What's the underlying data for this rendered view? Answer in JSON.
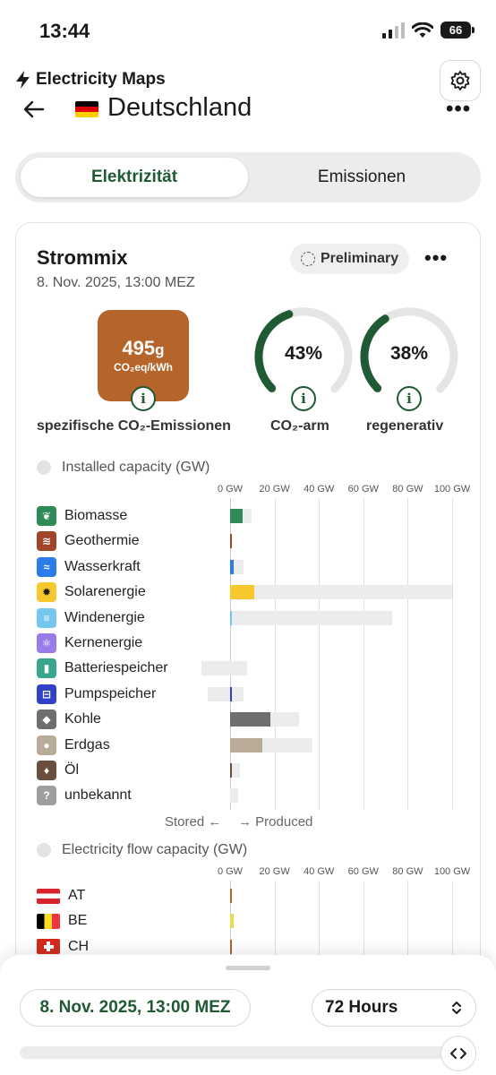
{
  "status": {
    "time": "13:44",
    "battery": "66"
  },
  "app": {
    "brand": "Electricity Maps"
  },
  "header": {
    "country": "Deutschland"
  },
  "tabs": [
    {
      "label": "Elektrizität",
      "active": true
    },
    {
      "label": "Emissionen",
      "active": false
    }
  ],
  "card": {
    "title": "Strommix",
    "date": "8. Nov. 2025, 13:00 MEZ",
    "badge": "Preliminary",
    "metrics": {
      "co2_value": "495",
      "co2_value_unit": "g",
      "co2_unit": "CO₂eq/kWh",
      "co2_label": "spezifische CO₂-Emissionen",
      "low_carbon_value": "43%",
      "low_carbon_fraction": 0.43,
      "low_carbon_label": "CO₂-arm",
      "renewable_value": "38%",
      "renewable_fraction": 0.38,
      "renewable_label": "regenerativ"
    },
    "installed": {
      "title": "Installed capacity (GW)",
      "axis_ticks": [
        "0 GW",
        "20 GW",
        "40 GW",
        "60 GW",
        "80 GW",
        "100 GW"
      ],
      "stored_label": "Stored ←",
      "produced_label": "→ Produced",
      "unknown_mark": "?",
      "sources": [
        {
          "label": "Biomasse",
          "icon": "leaf-icon",
          "color": "#2e8b57",
          "produced": 5.5,
          "capacity": 9.5,
          "stored": 0
        },
        {
          "label": "Geothermie",
          "icon": "geothermal-icon",
          "color": "#a0462a",
          "produced": 0.2,
          "capacity": 0.4,
          "stored": 0
        },
        {
          "label": "Wasserkraft",
          "icon": "water-icon",
          "color": "#2b7de9",
          "produced": 1.6,
          "capacity": 6.0,
          "stored": 0
        },
        {
          "label": "Solarenergie",
          "icon": "sun-icon",
          "color": "#f7c82e",
          "produced": 11.0,
          "capacity": 100.0,
          "stored": 0
        },
        {
          "label": "Windenergie",
          "icon": "wind-icon",
          "color": "#74c6ef",
          "produced": 0.6,
          "capacity": 73.0,
          "stored": 0
        },
        {
          "label": "Kernenergie",
          "icon": "atom-icon",
          "color": "#9a7bea",
          "produced": 0,
          "capacity": 0,
          "stored": 0
        },
        {
          "label": "Batteriespeicher",
          "icon": "battery-icon",
          "color": "#3aa58e",
          "produced": 0,
          "capacity": 13.0,
          "stored": 13.0
        },
        {
          "label": "Pumpspeicher",
          "icon": "pump-storage-icon",
          "color": "#3142c9",
          "produced": 0.6,
          "capacity": 10.0,
          "stored": 10.0
        },
        {
          "label": "Kohle",
          "icon": "coal-icon",
          "color": "#6e6e6e",
          "produced": 18.0,
          "capacity": 31.0,
          "stored": 0
        },
        {
          "label": "Erdgas",
          "icon": "gas-icon",
          "color": "#b8ab98",
          "produced": 14.5,
          "capacity": 37.0,
          "stored": 0
        },
        {
          "label": "Öl",
          "icon": "oil-icon",
          "color": "#6a4e3d",
          "produced": 0.3,
          "capacity": 4.5,
          "stored": 0
        },
        {
          "label": "unbekannt",
          "icon": "question-icon",
          "color": "#9e9e9e",
          "produced": 0,
          "capacity": 3.5,
          "stored": 0
        }
      ]
    },
    "flow": {
      "title": "Electricity flow capacity (GW)",
      "axis_ticks": [
        "0 GW",
        "20 GW",
        "40 GW",
        "60 GW",
        "80 GW",
        "100 GW"
      ],
      "countries": [
        {
          "code": "AT",
          "color": "#b5642a",
          "value": 1.0
        },
        {
          "code": "BE",
          "color": "#e8dd4f",
          "value": 1.6
        },
        {
          "code": "CH",
          "color": "#b5642a",
          "value": 0.4
        }
      ]
    }
  },
  "bottom": {
    "date": "8. Nov. 2025, 13:00 MEZ",
    "range": "72 Hours"
  }
}
